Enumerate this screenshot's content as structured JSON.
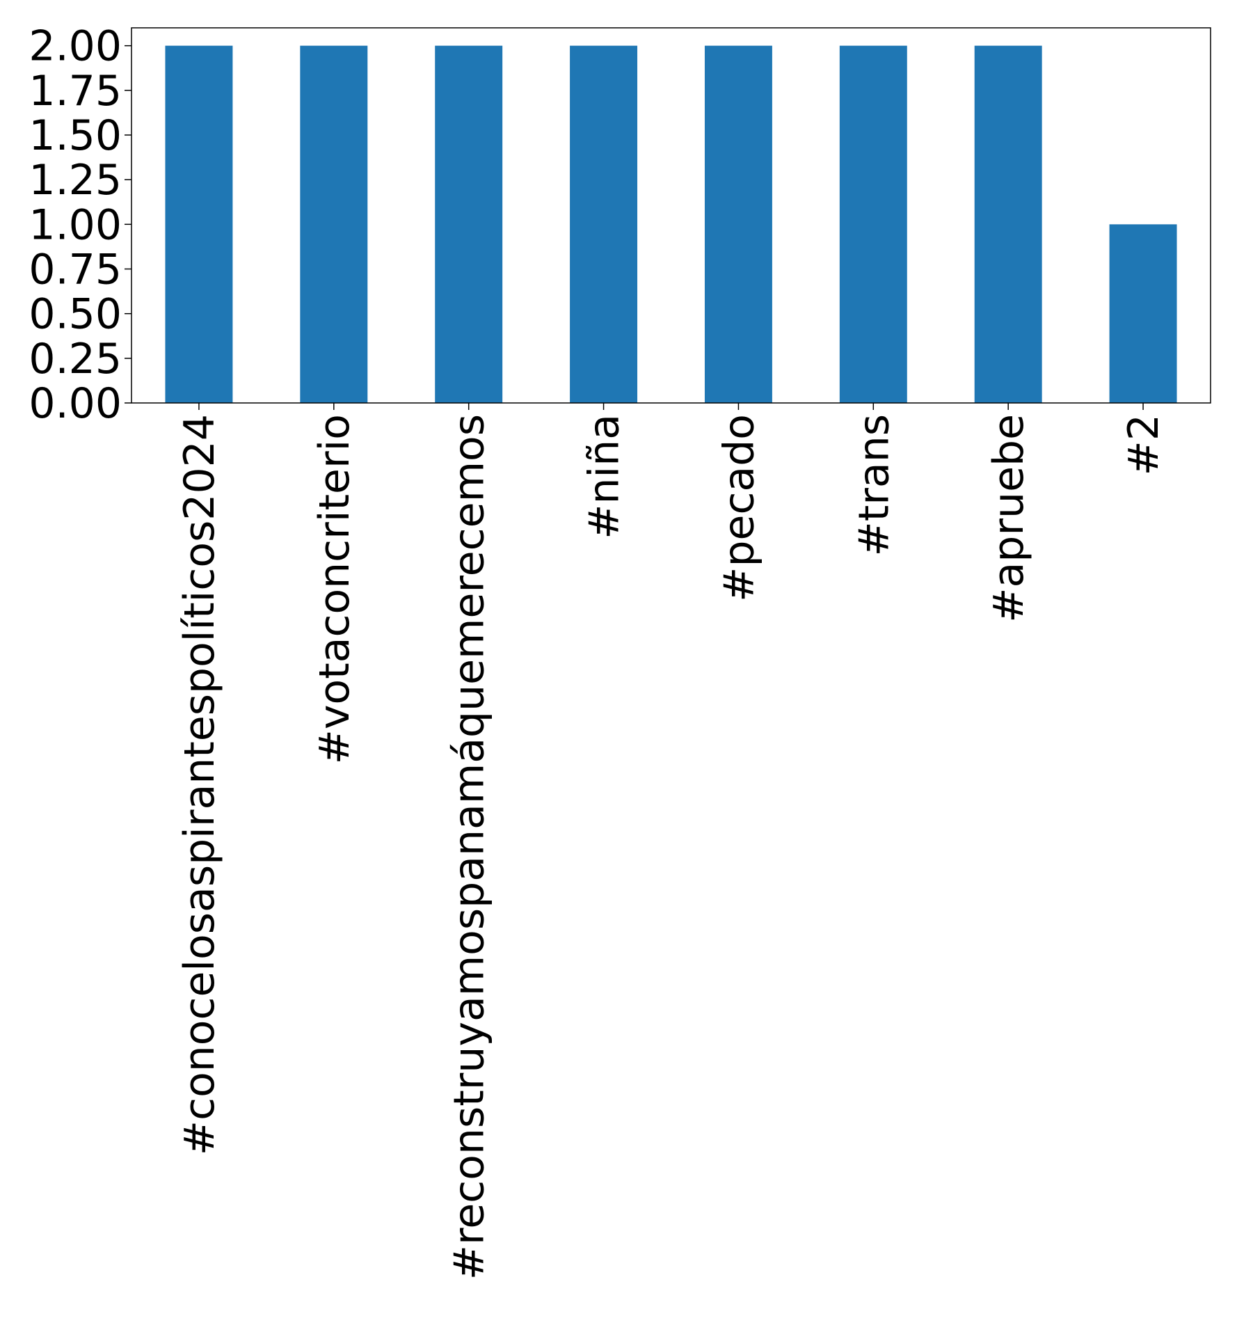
{
  "chart_data": {
    "type": "bar",
    "title": "",
    "xlabel": "",
    "ylabel": "",
    "categories": [
      "#conocelosaspirantespolíticos2024",
      "#votaconcriterio",
      "#reconstruyamospanamáquemerecemos",
      "#niña",
      "#pecado",
      "#trans",
      "#apruebe",
      "#2"
    ],
    "values": [
      2,
      2,
      2,
      2,
      2,
      2,
      2,
      1
    ],
    "ylim": [
      0,
      2.1
    ],
    "yticks": [
      "0.00",
      "0.25",
      "0.50",
      "0.75",
      "1.00",
      "1.25",
      "1.50",
      "1.75",
      "2.00"
    ],
    "grid": false,
    "legend": "none",
    "colors": {
      "bar": "#1f77b4",
      "axis": "#000000",
      "background": "#ffffff"
    }
  }
}
